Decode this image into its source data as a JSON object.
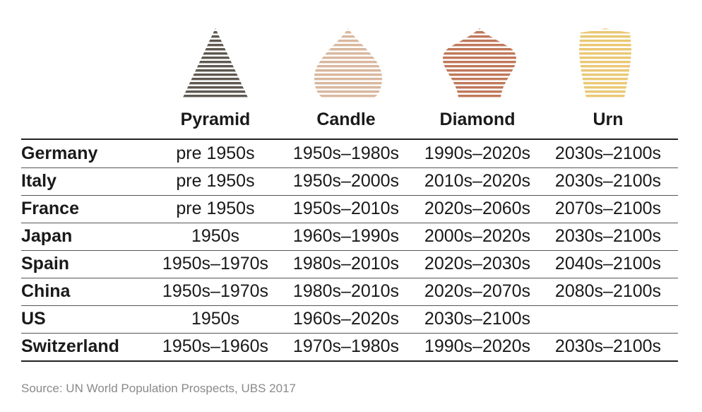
{
  "columns": [
    {
      "label": "Pyramid",
      "color": "#5e5850"
    },
    {
      "label": "Candle",
      "color": "#d9b79e"
    },
    {
      "label": "Diamond",
      "color": "#c0785a"
    },
    {
      "label": "Urn",
      "color": "#eac873"
    }
  ],
  "rows": [
    {
      "country": "Germany",
      "values": [
        "pre 1950s",
        "1950s–1980s",
        "1990s–2020s",
        "2030s–2100s"
      ]
    },
    {
      "country": "Italy",
      "values": [
        "pre 1950s",
        "1950s–2000s",
        "2010s–2020s",
        "2030s–2100s"
      ]
    },
    {
      "country": "France",
      "values": [
        "pre 1950s",
        "1950s–2010s",
        "2020s–2060s",
        "2070s–2100s"
      ]
    },
    {
      "country": "Japan",
      "values": [
        "1950s",
        "1960s–1990s",
        "2000s–2020s",
        "2030s–2100s"
      ]
    },
    {
      "country": "Spain",
      "values": [
        "1950s–1970s",
        "1980s–2010s",
        "2020s–2030s",
        "2040s–2100s"
      ]
    },
    {
      "country": "China",
      "values": [
        "1950s–1970s",
        "1980s–2010s",
        "2020s–2070s",
        "2080s–2100s"
      ]
    },
    {
      "country": "US",
      "values": [
        "1950s",
        "1960s–2020s",
        "2030s–2100s",
        ""
      ]
    },
    {
      "country": "Switzerland",
      "values": [
        "1950s–1960s",
        "1970s–1980s",
        "1990s–2020s",
        "2030s–2100s"
      ]
    }
  ],
  "source": "Source: UN World Population Prospects, UBS 2017"
}
